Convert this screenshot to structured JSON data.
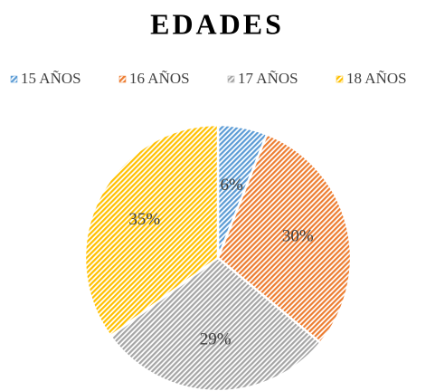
{
  "chart_data": {
    "type": "pie",
    "title": "EDADES",
    "categories": [
      "15 AÑOS",
      "16 AÑOS",
      "17 AÑOS",
      "18 AÑOS"
    ],
    "values": [
      6,
      30,
      29,
      35
    ],
    "value_labels": [
      "6%",
      "30%",
      "29%",
      "35%"
    ],
    "colors": [
      "#5b9bd5",
      "#ed7d31",
      "#a5a5a5",
      "#ffc000"
    ],
    "legend": "top"
  }
}
